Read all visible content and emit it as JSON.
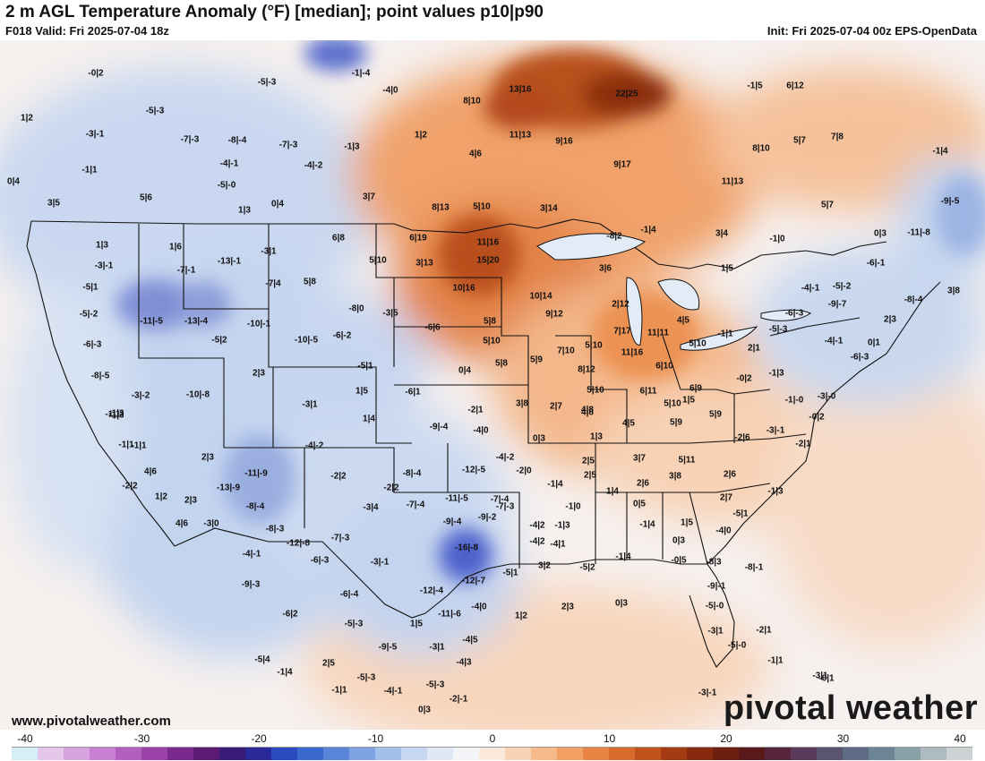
{
  "header": {
    "title": "2 m AGL Temperature Anomaly (°F) [median]; point values p10|p90",
    "valid": "F018 Valid: Fri 2025-07-04 18z",
    "init": "Init: Fri 2025-07-04 00z EPS-OpenData"
  },
  "footer": {
    "url": "www.pivotalweather.com",
    "brand": "pivotal weather"
  },
  "colorbar": {
    "ticks": [
      "-40",
      "-30",
      "-20",
      "-10",
      "0",
      "10",
      "20",
      "30",
      "40"
    ],
    "colors": [
      "#d7eef8",
      "#e3c6ea",
      "#d8a2e0",
      "#c97fd3",
      "#b45fc0",
      "#9a42a8",
      "#7a2a8d",
      "#5c1a73",
      "#3c1a78",
      "#2a2a9a",
      "#2c4bc0",
      "#3a6ad0",
      "#5a86da",
      "#7fa3e2",
      "#a3bfeb",
      "#c5d7f2",
      "#dfe8f6",
      "#f2f4f8",
      "#fbe9dc",
      "#f8d3b4",
      "#f5b98a",
      "#f29f64",
      "#e98444",
      "#d86a2c",
      "#c1521c",
      "#a53b12",
      "#872a0e",
      "#6d1f10",
      "#5a1a1c",
      "#57263c",
      "#5b3a5c",
      "#5a5372",
      "#5d6b84",
      "#6c8594",
      "#8aa0a8",
      "#aebbc0",
      "#cdd3d5"
    ]
  },
  "point_values": [
    {
      "text": "-0|2"
    },
    {
      "text": "1|2"
    },
    {
      "text": "-3|-1"
    },
    {
      "text": "-1|1"
    },
    {
      "text": "0|4"
    },
    {
      "text": "3|5"
    },
    {
      "text": "5|6"
    },
    {
      "text": "-5|-3"
    },
    {
      "text": "-7|-3"
    },
    {
      "text": "-8|-4"
    },
    {
      "text": "-4|-1"
    },
    {
      "text": "-5|-0"
    },
    {
      "text": "1|3"
    },
    {
      "text": "-5|-3"
    },
    {
      "text": "-7|-3"
    },
    {
      "text": "-4|-2"
    },
    {
      "text": "0|4"
    },
    {
      "text": "-1|-4"
    },
    {
      "text": "-4|0"
    },
    {
      "text": "-1|3"
    },
    {
      "text": "3|7"
    },
    {
      "text": "8|10"
    },
    {
      "text": "13|16"
    },
    {
      "text": "22|25"
    },
    {
      "text": "1|2"
    },
    {
      "text": "11|13"
    },
    {
      "text": "9|16"
    },
    {
      "text": "4|6"
    },
    {
      "text": "9|17"
    },
    {
      "text": "8|13"
    },
    {
      "text": "5|10"
    },
    {
      "text": "3|14"
    },
    {
      "text": "11|13"
    },
    {
      "text": "8|10"
    },
    {
      "text": "5|7"
    },
    {
      "text": "7|8"
    },
    {
      "text": "6|12"
    },
    {
      "text": "-1|5"
    },
    {
      "text": "-1|4"
    },
    {
      "text": "5|7"
    },
    {
      "text": "-9|-5"
    },
    {
      "text": "3|4"
    },
    {
      "text": "-1|0"
    },
    {
      "text": "0|3"
    },
    {
      "text": "-11|-8"
    },
    {
      "text": "-6|-1"
    },
    {
      "text": "1|5"
    },
    {
      "text": "-4|-1"
    },
    {
      "text": "-5|-2"
    },
    {
      "text": "-9|-7"
    },
    {
      "text": "-8|-4"
    },
    {
      "text": "3|8"
    },
    {
      "text": "2|3"
    },
    {
      "text": "1|3"
    },
    {
      "text": "-3|-1"
    },
    {
      "text": "-5|1"
    },
    {
      "text": "-5|-2"
    },
    {
      "text": "-6|-3"
    },
    {
      "text": "-8|-5"
    },
    {
      "text": "-1|3"
    },
    {
      "text": "-1|1"
    },
    {
      "text": "1|6"
    },
    {
      "text": "-7|-1"
    },
    {
      "text": "-13|-1"
    },
    {
      "text": "-3|1"
    },
    {
      "text": "-7|4"
    },
    {
      "text": "-11|-5"
    },
    {
      "text": "-13|-4"
    },
    {
      "text": "-10|-1"
    },
    {
      "text": "-5|2"
    },
    {
      "text": "6|8"
    },
    {
      "text": "6|19"
    },
    {
      "text": "11|16"
    },
    {
      "text": "5|10"
    },
    {
      "text": "3|13"
    },
    {
      "text": "15|20"
    },
    {
      "text": "5|8"
    },
    {
      "text": "10|16"
    },
    {
      "text": "-8|0"
    },
    {
      "text": "-3|5"
    },
    {
      "text": "-6|-2"
    },
    {
      "text": "-10|-5"
    },
    {
      "text": "-6|6"
    },
    {
      "text": "-8|2"
    },
    {
      "text": "-1|4"
    },
    {
      "text": "3|6"
    },
    {
      "text": "10|14"
    },
    {
      "text": "9|12"
    },
    {
      "text": "2|12"
    },
    {
      "text": "5|8"
    },
    {
      "text": "5|10"
    },
    {
      "text": "7|17"
    },
    {
      "text": "11|11"
    },
    {
      "text": "4|5"
    },
    {
      "text": "5|10"
    },
    {
      "text": "-3|-2"
    },
    {
      "text": "-10|-8"
    },
    {
      "text": "2|3"
    },
    {
      "text": "-5|1"
    },
    {
      "text": "1|5"
    },
    {
      "text": "-3|1"
    },
    {
      "text": "1|4"
    },
    {
      "text": "0|4"
    },
    {
      "text": "-6|1"
    },
    {
      "text": "-2|1"
    },
    {
      "text": "-9|-4"
    },
    {
      "text": "-4|0"
    },
    {
      "text": "5|8"
    },
    {
      "text": "5|9"
    },
    {
      "text": "7|10"
    },
    {
      "text": "5|10"
    },
    {
      "text": "11|16"
    },
    {
      "text": "8|12"
    },
    {
      "text": "6|10"
    },
    {
      "text": "5|10"
    },
    {
      "text": "6|11"
    },
    {
      "text": "6|9"
    },
    {
      "text": "3|8"
    },
    {
      "text": "2|7"
    },
    {
      "text": "4|8"
    },
    {
      "text": "-1|1"
    },
    {
      "text": "2|1"
    },
    {
      "text": "-5|-3"
    },
    {
      "text": "-6|-3"
    },
    {
      "text": "-4|-1"
    },
    {
      "text": "0|1"
    },
    {
      "text": "-6|-3"
    },
    {
      "text": "-1|3"
    },
    {
      "text": "-0|2"
    },
    {
      "text": "-1|-0"
    },
    {
      "text": "-3|-0"
    },
    {
      "text": "-1|3"
    },
    {
      "text": "-1|1"
    },
    {
      "text": "-1|1"
    },
    {
      "text": "4|6"
    },
    {
      "text": "2|3"
    },
    {
      "text": "-13|-9"
    },
    {
      "text": "-11|-9"
    },
    {
      "text": "-8|-4"
    },
    {
      "text": "-4|-2"
    },
    {
      "text": "-2|2"
    },
    {
      "text": "-3|4"
    },
    {
      "text": "-2|2"
    },
    {
      "text": "1|2"
    },
    {
      "text": "2|3"
    },
    {
      "text": "4|6"
    },
    {
      "text": "-3|0"
    },
    {
      "text": "-8|-3"
    },
    {
      "text": "-12|-8"
    },
    {
      "text": "-7|-3"
    },
    {
      "text": "-8|-4"
    },
    {
      "text": "-12|-5"
    },
    {
      "text": "-4|-2"
    },
    {
      "text": "-2|0"
    },
    {
      "text": "-2|2"
    },
    {
      "text": "-7|-4"
    },
    {
      "text": "-11|-5"
    },
    {
      "text": "-7|-3"
    },
    {
      "text": "-9|-4"
    },
    {
      "text": "-9|-2"
    },
    {
      "text": "-7|-4"
    },
    {
      "text": "-4|2"
    },
    {
      "text": "0|3"
    },
    {
      "text": "1|3"
    },
    {
      "text": "3|7"
    },
    {
      "text": "5|11"
    },
    {
      "text": "4|8"
    },
    {
      "text": "5|10"
    },
    {
      "text": "5|9"
    },
    {
      "text": "5|9"
    },
    {
      "text": "2|5"
    },
    {
      "text": "4|5"
    },
    {
      "text": "1|5"
    },
    {
      "text": "-2|6"
    },
    {
      "text": "-3|-1"
    },
    {
      "text": "-2|1"
    },
    {
      "text": "-0|2"
    },
    {
      "text": "2|6"
    },
    {
      "text": "-1|4"
    },
    {
      "text": "2|5"
    },
    {
      "text": "1|4"
    },
    {
      "text": "2|6"
    },
    {
      "text": "3|8"
    },
    {
      "text": "2|7"
    },
    {
      "text": "-1|3"
    },
    {
      "text": "-1|0"
    },
    {
      "text": "0|5"
    },
    {
      "text": "-1|4"
    },
    {
      "text": "1|5"
    },
    {
      "text": "0|3"
    },
    {
      "text": "-5|1"
    },
    {
      "text": "-4|0"
    },
    {
      "text": "-1|3"
    },
    {
      "text": "-4|2"
    },
    {
      "text": "-4|1"
    },
    {
      "text": "-8|-1"
    },
    {
      "text": "-4|-1"
    },
    {
      "text": "-9|-3"
    },
    {
      "text": "-6|-3"
    },
    {
      "text": "-3|-1"
    },
    {
      "text": "-16|-8"
    },
    {
      "text": "-12|-7"
    },
    {
      "text": "-5|1"
    },
    {
      "text": "3|2"
    },
    {
      "text": "-5|2"
    },
    {
      "text": "-1|4"
    },
    {
      "text": "-0|5"
    },
    {
      "text": "-8|3"
    },
    {
      "text": "-6|2"
    },
    {
      "text": "-6|-4"
    },
    {
      "text": "-12|-4"
    },
    {
      "text": "-5|-3"
    },
    {
      "text": "1|5"
    },
    {
      "text": "-11|-6"
    },
    {
      "text": "-4|0"
    },
    {
      "text": "1|2"
    },
    {
      "text": "2|3"
    },
    {
      "text": "0|3"
    },
    {
      "text": "-9|-1"
    },
    {
      "text": "-5|-0"
    },
    {
      "text": "-3|1"
    },
    {
      "text": "-2|1"
    },
    {
      "text": "-5|-0"
    },
    {
      "text": "-5|4"
    },
    {
      "text": "-1|4"
    },
    {
      "text": "2|5"
    },
    {
      "text": "-9|-5"
    },
    {
      "text": "-3|1"
    },
    {
      "text": "-4|5"
    },
    {
      "text": "-4|3"
    },
    {
      "text": "-5|-3"
    },
    {
      "text": "-1|1"
    },
    {
      "text": "-4|-1"
    },
    {
      "text": "-5|-3"
    },
    {
      "text": "-2|-1"
    },
    {
      "text": "0|3"
    },
    {
      "text": "-1|1"
    },
    {
      "text": "-3|1"
    },
    {
      "text": "-0|1"
    },
    {
      "text": "-3|-1"
    }
  ]
}
